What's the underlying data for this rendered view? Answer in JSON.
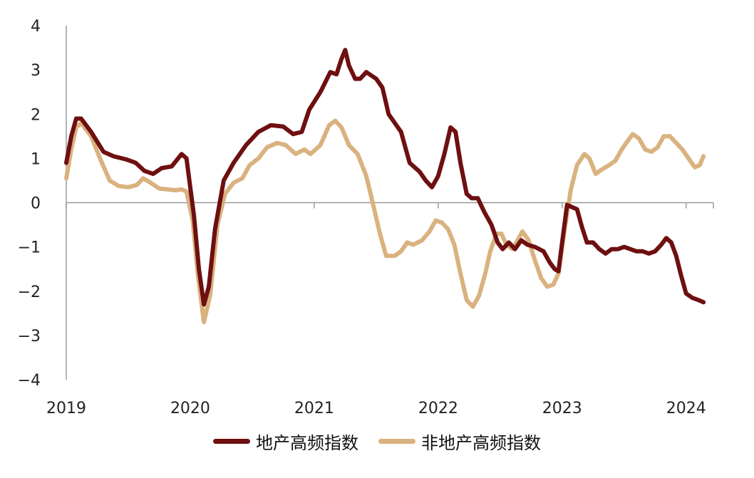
{
  "chart_data": {
    "type": "line",
    "title": "",
    "xlabel": "",
    "ylabel": "",
    "xlim": [
      2019.0,
      2024.22
    ],
    "ylim": [
      -4,
      4
    ],
    "yticks": [
      "4",
      "3",
      "2",
      "1",
      "0",
      "−1",
      "−2",
      "−3",
      "−4"
    ],
    "xticks": [
      "2019",
      "2020",
      "2021",
      "2022",
      "2023",
      "2024"
    ],
    "grid": false,
    "legend_position": "bottom",
    "series": [
      {
        "name": "地产高频指数",
        "color": "#6e0f10",
        "points": [
          [
            2019.0,
            0.9
          ],
          [
            2019.04,
            1.5
          ],
          [
            2019.08,
            1.9
          ],
          [
            2019.12,
            1.9
          ],
          [
            2019.2,
            1.6
          ],
          [
            2019.3,
            1.15
          ],
          [
            2019.38,
            1.05
          ],
          [
            2019.48,
            0.98
          ],
          [
            2019.56,
            0.9
          ],
          [
            2019.63,
            0.72
          ],
          [
            2019.7,
            0.65
          ],
          [
            2019.77,
            0.78
          ],
          [
            2019.85,
            0.82
          ],
          [
            2019.93,
            1.1
          ],
          [
            2019.97,
            1.0
          ],
          [
            2020.03,
            -0.3
          ],
          [
            2020.07,
            -1.5
          ],
          [
            2020.11,
            -2.3
          ],
          [
            2020.15,
            -1.9
          ],
          [
            2020.2,
            -0.6
          ],
          [
            2020.27,
            0.5
          ],
          [
            2020.35,
            0.9
          ],
          [
            2020.45,
            1.3
          ],
          [
            2020.55,
            1.6
          ],
          [
            2020.65,
            1.75
          ],
          [
            2020.75,
            1.72
          ],
          [
            2020.83,
            1.55
          ],
          [
            2020.9,
            1.6
          ],
          [
            2020.96,
            2.1
          ],
          [
            2021.05,
            2.5
          ],
          [
            2021.13,
            2.95
          ],
          [
            2021.18,
            2.9
          ],
          [
            2021.22,
            3.25
          ],
          [
            2021.25,
            3.45
          ],
          [
            2021.28,
            3.1
          ],
          [
            2021.33,
            2.8
          ],
          [
            2021.37,
            2.8
          ],
          [
            2021.42,
            2.95
          ],
          [
            2021.5,
            2.8
          ],
          [
            2021.55,
            2.6
          ],
          [
            2021.6,
            2.0
          ],
          [
            2021.65,
            1.8
          ],
          [
            2021.7,
            1.6
          ],
          [
            2021.77,
            0.9
          ],
          [
            2021.85,
            0.7
          ],
          [
            2021.9,
            0.5
          ],
          [
            2021.95,
            0.35
          ],
          [
            2022.0,
            0.6
          ],
          [
            2022.05,
            1.1
          ],
          [
            2022.1,
            1.7
          ],
          [
            2022.14,
            1.6
          ],
          [
            2022.18,
            0.9
          ],
          [
            2022.23,
            0.2
          ],
          [
            2022.27,
            0.1
          ],
          [
            2022.32,
            0.1
          ],
          [
            2022.37,
            -0.2
          ],
          [
            2022.43,
            -0.5
          ],
          [
            2022.48,
            -0.9
          ],
          [
            2022.52,
            -1.05
          ],
          [
            2022.57,
            -0.9
          ],
          [
            2022.62,
            -1.05
          ],
          [
            2022.67,
            -0.85
          ],
          [
            2022.72,
            -0.95
          ],
          [
            2022.78,
            -1.0
          ],
          [
            2022.85,
            -1.1
          ],
          [
            2022.9,
            -1.35
          ],
          [
            2022.94,
            -1.5
          ],
          [
            2022.97,
            -1.55
          ],
          [
            2023.0,
            -0.9
          ],
          [
            2023.04,
            -0.05
          ],
          [
            2023.08,
            -0.1
          ],
          [
            2023.12,
            -0.15
          ],
          [
            2023.16,
            -0.55
          ],
          [
            2023.2,
            -0.9
          ],
          [
            2023.25,
            -0.9
          ],
          [
            2023.3,
            -1.05
          ],
          [
            2023.35,
            -1.15
          ],
          [
            2023.4,
            -1.05
          ],
          [
            2023.45,
            -1.05
          ],
          [
            2023.5,
            -1.0
          ],
          [
            2023.55,
            -1.05
          ],
          [
            2023.6,
            -1.1
          ],
          [
            2023.65,
            -1.1
          ],
          [
            2023.7,
            -1.15
          ],
          [
            2023.75,
            -1.1
          ],
          [
            2023.8,
            -0.95
          ],
          [
            2023.84,
            -0.8
          ],
          [
            2023.88,
            -0.9
          ],
          [
            2023.92,
            -1.2
          ],
          [
            2023.96,
            -1.65
          ],
          [
            2024.0,
            -2.05
          ],
          [
            2024.05,
            -2.15
          ],
          [
            2024.1,
            -2.2
          ],
          [
            2024.14,
            -2.25
          ]
        ]
      },
      {
        "name": "非地产高频指数",
        "color": "#d9b27f",
        "points": [
          [
            2019.0,
            0.55
          ],
          [
            2019.04,
            1.2
          ],
          [
            2019.08,
            1.7
          ],
          [
            2019.12,
            1.8
          ],
          [
            2019.2,
            1.5
          ],
          [
            2019.28,
            0.95
          ],
          [
            2019.35,
            0.5
          ],
          [
            2019.42,
            0.38
          ],
          [
            2019.5,
            0.35
          ],
          [
            2019.57,
            0.4
          ],
          [
            2019.62,
            0.55
          ],
          [
            2019.68,
            0.45
          ],
          [
            2019.75,
            0.32
          ],
          [
            2019.82,
            0.3
          ],
          [
            2019.88,
            0.28
          ],
          [
            2019.93,
            0.3
          ],
          [
            2019.97,
            0.25
          ],
          [
            2020.02,
            -0.4
          ],
          [
            2020.06,
            -1.6
          ],
          [
            2020.11,
            -2.7
          ],
          [
            2020.16,
            -2.1
          ],
          [
            2020.22,
            -0.5
          ],
          [
            2020.28,
            0.2
          ],
          [
            2020.35,
            0.45
          ],
          [
            2020.42,
            0.55
          ],
          [
            2020.48,
            0.85
          ],
          [
            2020.55,
            1.0
          ],
          [
            2020.62,
            1.25
          ],
          [
            2020.7,
            1.35
          ],
          [
            2020.77,
            1.3
          ],
          [
            2020.85,
            1.1
          ],
          [
            2020.92,
            1.2
          ],
          [
            2020.97,
            1.1
          ],
          [
            2021.05,
            1.3
          ],
          [
            2021.12,
            1.75
          ],
          [
            2021.17,
            1.85
          ],
          [
            2021.22,
            1.7
          ],
          [
            2021.28,
            1.3
          ],
          [
            2021.35,
            1.1
          ],
          [
            2021.42,
            0.6
          ],
          [
            2021.48,
            -0.1
          ],
          [
            2021.53,
            -0.7
          ],
          [
            2021.58,
            -1.2
          ],
          [
            2021.65,
            -1.2
          ],
          [
            2021.7,
            -1.1
          ],
          [
            2021.75,
            -0.9
          ],
          [
            2021.8,
            -0.95
          ],
          [
            2021.87,
            -0.85
          ],
          [
            2021.93,
            -0.65
          ],
          [
            2021.98,
            -0.4
          ],
          [
            2022.03,
            -0.45
          ],
          [
            2022.08,
            -0.6
          ],
          [
            2022.13,
            -0.95
          ],
          [
            2022.18,
            -1.6
          ],
          [
            2022.23,
            -2.2
          ],
          [
            2022.28,
            -2.35
          ],
          [
            2022.33,
            -2.1
          ],
          [
            2022.38,
            -1.6
          ],
          [
            2022.42,
            -1.1
          ],
          [
            2022.47,
            -0.7
          ],
          [
            2022.51,
            -0.7
          ],
          [
            2022.55,
            -0.95
          ],
          [
            2022.6,
            -1.05
          ],
          [
            2022.64,
            -0.85
          ],
          [
            2022.68,
            -0.65
          ],
          [
            2022.73,
            -0.85
          ],
          [
            2022.78,
            -1.3
          ],
          [
            2022.83,
            -1.7
          ],
          [
            2022.88,
            -1.9
          ],
          [
            2022.93,
            -1.85
          ],
          [
            2022.97,
            -1.6
          ],
          [
            2023.02,
            -0.6
          ],
          [
            2023.07,
            0.3
          ],
          [
            2023.12,
            0.85
          ],
          [
            2023.18,
            1.1
          ],
          [
            2023.22,
            1.0
          ],
          [
            2023.27,
            0.65
          ],
          [
            2023.32,
            0.75
          ],
          [
            2023.38,
            0.85
          ],
          [
            2023.43,
            0.95
          ],
          [
            2023.48,
            1.2
          ],
          [
            2023.53,
            1.4
          ],
          [
            2023.57,
            1.55
          ],
          [
            2023.62,
            1.45
          ],
          [
            2023.67,
            1.2
          ],
          [
            2023.72,
            1.15
          ],
          [
            2023.77,
            1.25
          ],
          [
            2023.82,
            1.5
          ],
          [
            2023.87,
            1.5
          ],
          [
            2023.92,
            1.35
          ],
          [
            2023.97,
            1.2
          ],
          [
            2024.02,
            1.0
          ],
          [
            2024.07,
            0.8
          ],
          [
            2024.11,
            0.85
          ],
          [
            2024.14,
            1.05
          ]
        ]
      }
    ]
  }
}
